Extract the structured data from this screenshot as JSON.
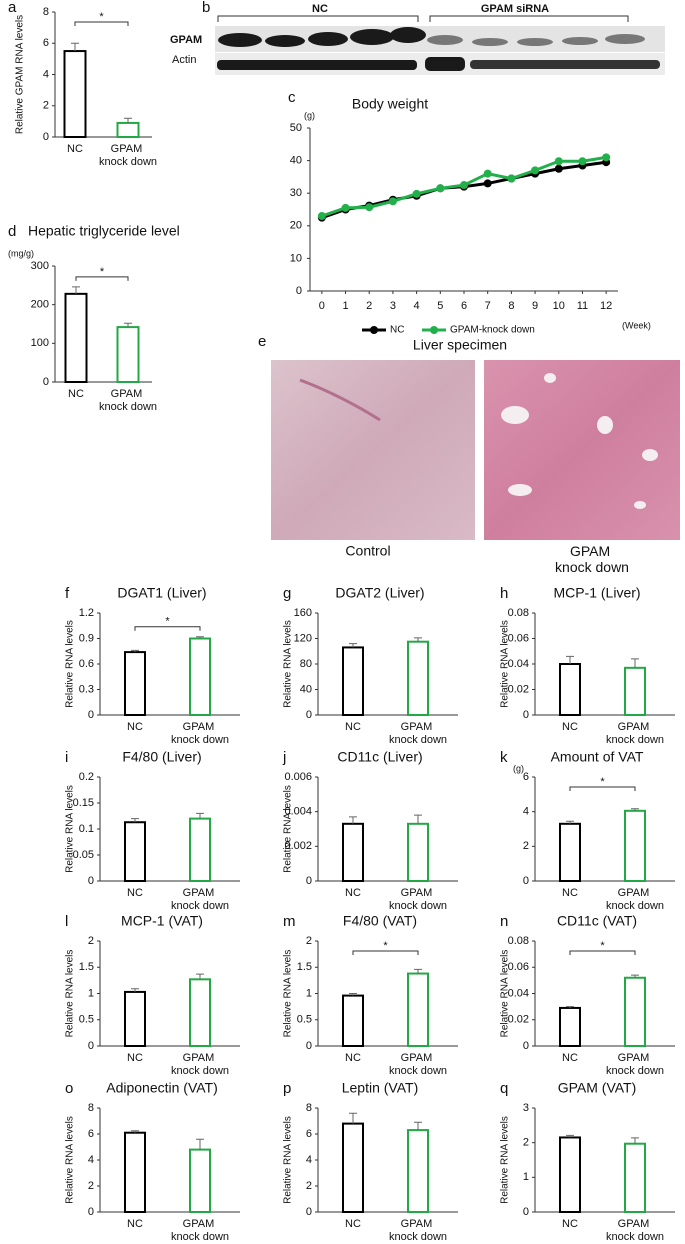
{
  "blot": {
    "panel": "b",
    "groups": [
      "NC",
      "GPAM siRNA"
    ],
    "rows": [
      "GPAM",
      "Actin"
    ]
  },
  "specimen": {
    "panel": "e",
    "title": "Liver specimen",
    "labels": [
      "Control",
      "GPAM knock down"
    ]
  },
  "chart_data": [
    {
      "type": "bar",
      "panel": "a",
      "ylabel": "Relative GPAM RNA levels",
      "categories": [
        "NC",
        "GPAM knock down"
      ],
      "values": [
        5.5,
        0.9
      ],
      "errors": [
        0.5,
        0.3
      ],
      "colors": [
        "#000000",
        "#22a844"
      ],
      "ylim": [
        0,
        8
      ],
      "yticks": [
        0,
        2,
        4,
        6,
        8
      ],
      "significance": "*"
    },
    {
      "type": "line",
      "panel": "c",
      "title": "Body weight",
      "unit": "(g)",
      "xlabel": "(Week)",
      "x": [
        0,
        1,
        2,
        3,
        4,
        5,
        6,
        7,
        8,
        9,
        10,
        11,
        12
      ],
      "xlim": [
        -0.5,
        12.5
      ],
      "xticks": [
        0,
        1,
        2,
        3,
        4,
        5,
        6,
        7,
        8,
        9,
        10,
        11,
        12
      ],
      "ylim": [
        0,
        50
      ],
      "yticks": [
        0,
        10,
        20,
        30,
        40,
        50
      ],
      "series": [
        {
          "name": "NC",
          "color": "#000000",
          "values": [
            22.5,
            25,
            26.2,
            28,
            29.2,
            31.5,
            32,
            33,
            34.5,
            36,
            37.5,
            38.5,
            39.5
          ]
        },
        {
          "name": "GPAM-knock down",
          "color": "#22b04b",
          "values": [
            23,
            25.5,
            25.7,
            27.5,
            29.8,
            31.5,
            32.5,
            36,
            34.5,
            37,
            39.8,
            39.8,
            41
          ]
        }
      ]
    },
    {
      "type": "bar",
      "panel": "d",
      "title": "Hepatic triglyceride level",
      "unit": "(mg/g)",
      "categories": [
        "NC",
        "GPAM knock down"
      ],
      "values": [
        228,
        142
      ],
      "errors": [
        18,
        10
      ],
      "colors": [
        "#000000",
        "#22a844"
      ],
      "ylim": [
        0,
        300
      ],
      "yticks": [
        0,
        100,
        200,
        300
      ],
      "significance": "*"
    },
    {
      "type": "bar",
      "panel": "f",
      "title": "DGAT1 (Liver)",
      "ylabel": "Relative RNA levels",
      "categories": [
        "NC",
        "GPAM knock down"
      ],
      "values": [
        0.74,
        0.9
      ],
      "errors": [
        0.02,
        0.02
      ],
      "colors": [
        "#000000",
        "#22a844"
      ],
      "ylim": [
        0,
        1.2
      ],
      "yticks": [
        0,
        0.3,
        0.6,
        0.9,
        1.2
      ],
      "significance": "*"
    },
    {
      "type": "bar",
      "panel": "g",
      "title": "DGAT2 (Liver)",
      "ylabel": "Relative RNA levels",
      "categories": [
        "NC",
        "GPAM knock down"
      ],
      "values": [
        106,
        115
      ],
      "errors": [
        6,
        6
      ],
      "colors": [
        "#000000",
        "#22a844"
      ],
      "ylim": [
        0,
        160
      ],
      "yticks": [
        0,
        40,
        80,
        120,
        160
      ]
    },
    {
      "type": "bar",
      "panel": "h",
      "title": "MCP-1 (Liver)",
      "ylabel": "Relative RNA levels",
      "categories": [
        "NC",
        "GPAM knock down"
      ],
      "values": [
        0.04,
        0.037
      ],
      "errors": [
        0.006,
        0.007
      ],
      "colors": [
        "#000000",
        "#22a844"
      ],
      "ylim": [
        0,
        0.08
      ],
      "yticks": [
        0,
        0.02,
        0.04,
        0.06,
        0.08
      ]
    },
    {
      "type": "bar",
      "panel": "i",
      "title": "F4/80 (Liver)",
      "ylabel": "Relative RNA levels",
      "categories": [
        "NC",
        "GPAM knock down"
      ],
      "values": [
        0.113,
        0.12
      ],
      "errors": [
        0.007,
        0.01
      ],
      "colors": [
        "#000000",
        "#22a844"
      ],
      "ylim": [
        0,
        0.2
      ],
      "yticks": [
        0,
        0.05,
        0.1,
        0.15,
        0.2
      ]
    },
    {
      "type": "bar",
      "panel": "j",
      "title": "CD11c (Liver)",
      "ylabel": "Relative RNA levels",
      "categories": [
        "NC",
        "GPAM knock down"
      ],
      "values": [
        0.0033,
        0.0033
      ],
      "errors": [
        0.0004,
        0.0005
      ],
      "colors": [
        "#000000",
        "#22a844"
      ],
      "ylim": [
        0,
        0.006
      ],
      "yticks": [
        0,
        0.002,
        0.004,
        0.006
      ]
    },
    {
      "type": "bar",
      "panel": "k",
      "title": "Amount of VAT",
      "unit": "(g)",
      "categories": [
        "NC",
        "GPAM knock down"
      ],
      "values": [
        3.3,
        4.05
      ],
      "errors": [
        0.15,
        0.12
      ],
      "colors": [
        "#000000",
        "#22a844"
      ],
      "ylim": [
        0,
        6
      ],
      "yticks": [
        0,
        2,
        4,
        6
      ],
      "significance": "*"
    },
    {
      "type": "bar",
      "panel": "l",
      "title": "MCP-1 (VAT)",
      "ylabel": "Relative RNA levels",
      "categories": [
        "NC",
        "GPAM knock down"
      ],
      "values": [
        1.03,
        1.27
      ],
      "errors": [
        0.06,
        0.1
      ],
      "colors": [
        "#000000",
        "#22a844"
      ],
      "ylim": [
        0,
        2
      ],
      "yticks": [
        0,
        0.5,
        1,
        1.5,
        2
      ]
    },
    {
      "type": "bar",
      "panel": "m",
      "title": "F4/80 (VAT)",
      "ylabel": "Relative RNA levels",
      "categories": [
        "NC",
        "GPAM knock down"
      ],
      "values": [
        0.96,
        1.38
      ],
      "errors": [
        0.04,
        0.08
      ],
      "colors": [
        "#000000",
        "#22a844"
      ],
      "ylim": [
        0,
        2
      ],
      "yticks": [
        0,
        0.5,
        1,
        1.5,
        2
      ],
      "significance": "*"
    },
    {
      "type": "bar",
      "panel": "n",
      "title": "CD11c (VAT)",
      "ylabel": "Relative RNA levels",
      "categories": [
        "NC",
        "GPAM knock down"
      ],
      "values": [
        0.029,
        0.052
      ],
      "errors": [
        0.001,
        0.002
      ],
      "colors": [
        "#000000",
        "#22a844"
      ],
      "ylim": [
        0,
        0.08
      ],
      "yticks": [
        0,
        0.02,
        0.04,
        0.06,
        0.08
      ],
      "significance": "*"
    },
    {
      "type": "bar",
      "panel": "o",
      "title": "Adiponectin (VAT)",
      "ylabel": "Relative RNA levels",
      "categories": [
        "NC",
        "GPAM knock down"
      ],
      "values": [
        6.1,
        4.8
      ],
      "errors": [
        0.15,
        0.8
      ],
      "colors": [
        "#000000",
        "#22a844"
      ],
      "ylim": [
        0,
        8
      ],
      "yticks": [
        0,
        2,
        4,
        6,
        8
      ]
    },
    {
      "type": "bar",
      "panel": "p",
      "title": "Leptin (VAT)",
      "ylabel": "Relative RNA levels",
      "categories": [
        "NC",
        "GPAM knock down"
      ],
      "values": [
        6.8,
        6.3
      ],
      "errors": [
        0.8,
        0.6
      ],
      "colors": [
        "#000000",
        "#22a844"
      ],
      "ylim": [
        0,
        8
      ],
      "yticks": [
        0,
        2,
        4,
        6,
        8
      ]
    },
    {
      "type": "bar",
      "panel": "q",
      "title": "GPAM (VAT)",
      "ylabel": "Relative RNA levels",
      "categories": [
        "NC",
        "GPAM knock down"
      ],
      "values": [
        2.15,
        1.97
      ],
      "errors": [
        0.06,
        0.17
      ],
      "colors": [
        "#000000",
        "#22a844"
      ],
      "ylim": [
        0,
        3
      ],
      "yticks": [
        0,
        1,
        2,
        3
      ]
    }
  ]
}
